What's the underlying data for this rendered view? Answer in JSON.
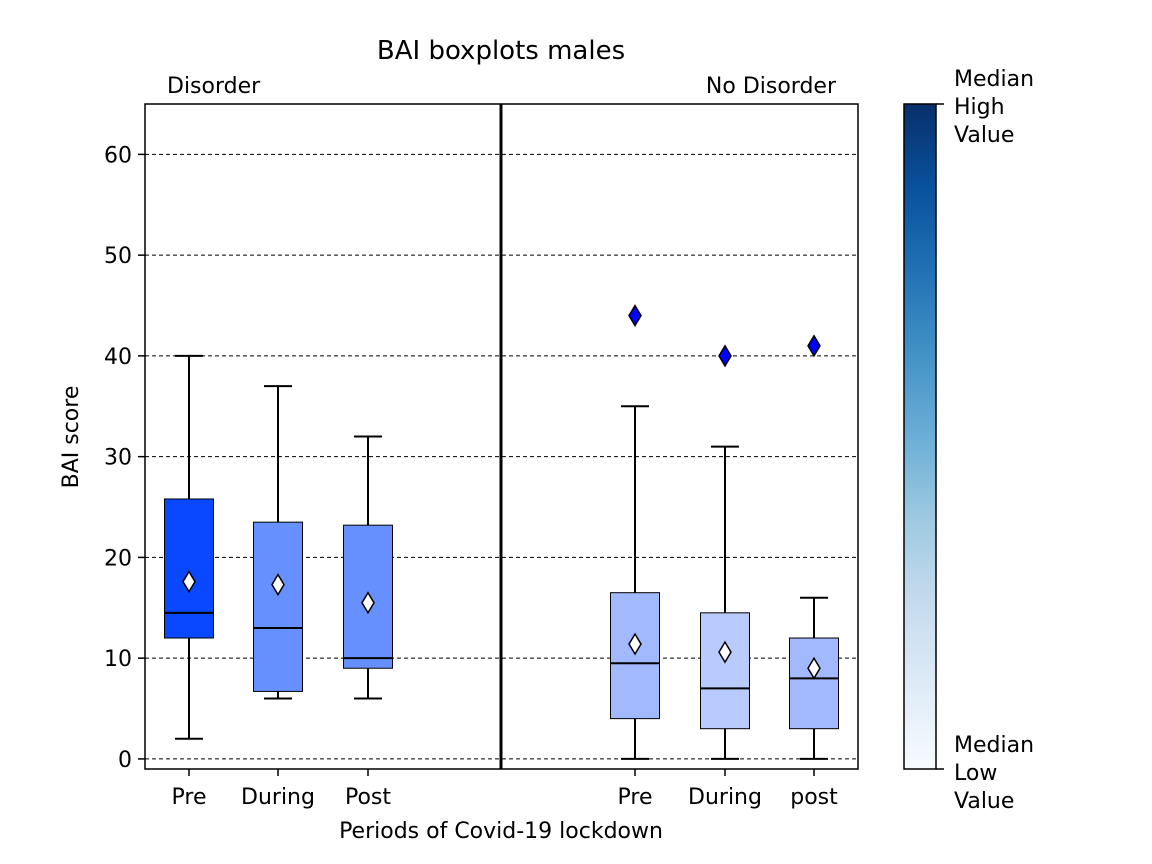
{
  "chart_data": {
    "type": "boxplot",
    "title": "BAI boxplots males",
    "xlabel": "Periods of Covid-19 lockdown",
    "ylabel": "BAI score",
    "ylim": [
      -1,
      65
    ],
    "yticks": [
      0,
      10,
      20,
      30,
      40,
      50,
      60
    ],
    "grid": "horizontal dashed",
    "groups": [
      {
        "label": "Disorder",
        "label_color": "#0000ff",
        "boxes": [
          {
            "category": "Pre",
            "whisker_low": 2,
            "q1": 12,
            "median": 14.5,
            "q3": 25.8,
            "whisker_high": 40,
            "mean": 17.6,
            "fliers": [],
            "fill": "#0a48ff"
          },
          {
            "category": "During",
            "whisker_low": 6,
            "q1": 6.7,
            "median": 13,
            "q3": 23.5,
            "whisker_high": 37,
            "mean": 17.3,
            "fliers": [],
            "fill": "#6790ff"
          },
          {
            "category": "Post",
            "whisker_low": 6,
            "q1": 9,
            "median": 10,
            "q3": 23.2,
            "whisker_high": 32,
            "mean": 15.5,
            "fliers": [],
            "fill": "#6790ff"
          }
        ]
      },
      {
        "label": "No Disorder",
        "label_color": "#0000ff",
        "boxes": [
          {
            "category": "Pre",
            "whisker_low": 0,
            "q1": 4,
            "median": 9.5,
            "q3": 16.5,
            "whisker_high": 35,
            "mean": 11.4,
            "fliers": [
              44
            ],
            "fill": "#a2b9ff"
          },
          {
            "category": "During",
            "whisker_low": 0,
            "q1": 3,
            "median": 7,
            "q3": 14.5,
            "whisker_high": 31,
            "mean": 10.6,
            "fliers": [
              40
            ],
            "fill": "#b9caff"
          },
          {
            "category": "post",
            "whisker_low": 0,
            "q1": 3,
            "median": 8,
            "q3": 12,
            "whisker_high": 16,
            "mean": 9,
            "fliers": [
              41
            ],
            "fill": "#a2b9ff"
          }
        ]
      }
    ],
    "colorbar": {
      "top_label": [
        "Median",
        "High",
        "Value"
      ],
      "bottom_label": [
        "Median",
        "Low",
        "Value"
      ],
      "colors": [
        "#08306b",
        "#08519c",
        "#2171b5",
        "#4292c6",
        "#6baed6",
        "#9ecae1",
        "#c6dbef",
        "#deebf7",
        "#f7fbff"
      ]
    },
    "flier_color": "#0000ff",
    "mean_marker_color": "#ffffff"
  }
}
